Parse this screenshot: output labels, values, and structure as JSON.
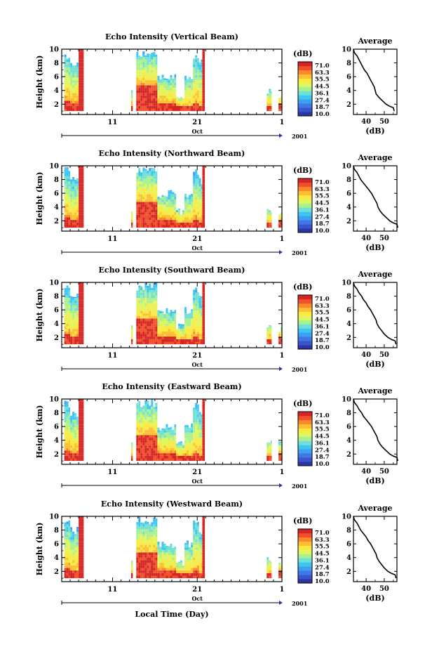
{
  "chart_data": {
    "type": "heatmap",
    "xlabel": "Local Time (Day)",
    "ylabel": "Height (km)",
    "month_label": "Oct",
    "year_label": "2001",
    "x_tick_labels": [
      "11",
      "21",
      "1"
    ],
    "y_tick_labels": [
      "2",
      "4",
      "6",
      "8",
      "10"
    ],
    "ylim": [
      0.5,
      10
    ],
    "colorbar": {
      "unit": "(dB)",
      "ticks": [
        "71.0",
        "63.3",
        "55.5",
        "44.5",
        "36.1",
        "27.4",
        "18.7",
        "10.0"
      ],
      "colors": [
        "#2b36a6",
        "#3a55cc",
        "#3f78e6",
        "#3ea0f0",
        "#3ec6f0",
        "#6fe0d8",
        "#a8f090",
        "#e0f660",
        "#fbe940",
        "#fdbf33",
        "#fc8a2b",
        "#f0502b",
        "#d42424"
      ]
    },
    "average_profile": {
      "title": "Average",
      "xlabel": "(dB)",
      "x_tick_labels": [
        "40",
        "50"
      ],
      "y_tick_labels": [
        "2",
        "4",
        "6",
        "8",
        "10"
      ]
    },
    "panels": [
      {
        "title": "Echo Intensity (Vertical Beam)",
        "average_profile": [
          [
            33,
            10
          ],
          [
            33.5,
            9.5
          ],
          [
            35,
            9
          ],
          [
            36,
            8.5
          ],
          [
            37,
            8
          ],
          [
            38,
            7.5
          ],
          [
            39,
            7
          ],
          [
            40.5,
            6.5
          ],
          [
            41.5,
            6
          ],
          [
            42.5,
            5.5
          ],
          [
            43.5,
            5
          ],
          [
            44.5,
            4.5
          ],
          [
            45,
            4
          ],
          [
            45.5,
            3.5
          ],
          [
            47,
            3
          ],
          [
            49,
            2.5
          ],
          [
            51,
            2
          ],
          [
            53,
            1.7
          ],
          [
            55,
            1.5
          ],
          [
            55.5,
            1
          ]
        ]
      },
      {
        "title": "Echo Intensity (Northward Beam)",
        "average_profile": [
          [
            33,
            10
          ],
          [
            33.5,
            9.5
          ],
          [
            35,
            9
          ],
          [
            36,
            8.5
          ],
          [
            37,
            8
          ],
          [
            38.5,
            7.5
          ],
          [
            40,
            7
          ],
          [
            41.5,
            6.5
          ],
          [
            43,
            6
          ],
          [
            44,
            5.5
          ],
          [
            45,
            5
          ],
          [
            46,
            4.5
          ],
          [
            46.5,
            4
          ],
          [
            47.5,
            3.5
          ],
          [
            49,
            3
          ],
          [
            51,
            2.5
          ],
          [
            53,
            2
          ],
          [
            55,
            1.7
          ],
          [
            57,
            1.5
          ],
          [
            57.5,
            1
          ]
        ]
      },
      {
        "title": "Echo Intensity (Southward Beam)",
        "average_profile": [
          [
            33,
            10
          ],
          [
            33.5,
            9.5
          ],
          [
            35,
            9
          ],
          [
            36,
            8.5
          ],
          [
            37.5,
            8
          ],
          [
            38.5,
            7.5
          ],
          [
            40,
            7
          ],
          [
            41,
            6.5
          ],
          [
            42.5,
            6
          ],
          [
            43.5,
            5.5
          ],
          [
            44.5,
            5
          ],
          [
            45.5,
            4.5
          ],
          [
            46,
            4
          ],
          [
            47,
            3.5
          ],
          [
            48.5,
            3
          ],
          [
            50,
            2.5
          ],
          [
            52,
            2
          ],
          [
            54,
            1.7
          ],
          [
            56,
            1.5
          ],
          [
            56.5,
            1
          ]
        ]
      },
      {
        "title": "Echo Intensity (Eastward Beam)",
        "average_profile": [
          [
            33,
            10
          ],
          [
            33.5,
            9.5
          ],
          [
            35,
            9
          ],
          [
            36,
            8.5
          ],
          [
            37.5,
            8
          ],
          [
            38.5,
            7.5
          ],
          [
            40,
            7
          ],
          [
            41.5,
            6.5
          ],
          [
            43,
            6
          ],
          [
            44,
            5.5
          ],
          [
            45,
            5
          ],
          [
            46,
            4.5
          ],
          [
            46.5,
            4
          ],
          [
            47.5,
            3.5
          ],
          [
            49,
            3
          ],
          [
            51,
            2.5
          ],
          [
            53,
            2
          ],
          [
            55,
            1.7
          ],
          [
            57,
            1.5
          ],
          [
            57.5,
            1
          ]
        ]
      },
      {
        "title": "Echo Intensity (Westward Beam)",
        "average_profile": [
          [
            33,
            10
          ],
          [
            33.5,
            9.5
          ],
          [
            35,
            9
          ],
          [
            36,
            8.5
          ],
          [
            37,
            8
          ],
          [
            38.5,
            7.5
          ],
          [
            40,
            7
          ],
          [
            41,
            6.5
          ],
          [
            42.5,
            6
          ],
          [
            43.5,
            5.5
          ],
          [
            44.5,
            5
          ],
          [
            45.5,
            4.5
          ],
          [
            46,
            4
          ],
          [
            47,
            3.5
          ],
          [
            48.5,
            3
          ],
          [
            50,
            2.5
          ],
          [
            52,
            2
          ],
          [
            54,
            1.7
          ],
          [
            56,
            1.5
          ],
          [
            56.5,
            1
          ]
        ]
      }
    ]
  }
}
